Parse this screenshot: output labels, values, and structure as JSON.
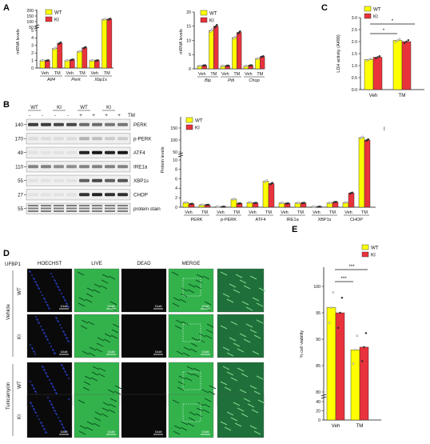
{
  "colors": {
    "wt": "#FFFF00",
    "ki": "#E8333C",
    "bar_stroke": "#222222",
    "micro_green": "#33B24C",
    "micro_blue": "#2C42D4",
    "micro_dark": "#0A0A0A"
  },
  "panels": {
    "A": "A",
    "B": "B",
    "C": "C",
    "D": "D",
    "E": "E"
  },
  "legend": {
    "wt": "WT",
    "ki": "KI"
  },
  "panelA": {
    "ylabel": "mRNA levels",
    "treatments": [
      "Veh",
      "TM"
    ],
    "chart1_genes": [
      "Atf4",
      "Perk",
      "Xbp1s"
    ],
    "chart2_genes": [
      "Bip",
      "Pdi",
      "Chop"
    ],
    "chart1_yticks_low": [
      "0",
      "1",
      "2",
      "3",
      "4",
      "5"
    ],
    "chart1_yticks_high": [
      "50",
      "100",
      "150",
      "200"
    ],
    "chart2_yticks": [
      "0",
      "5",
      "10",
      "15",
      "20"
    ]
  },
  "panelB": {
    "lane_genotypes": [
      "WT",
      "KI",
      "WT",
      "KI"
    ],
    "tm_marks": [
      "-",
      "-",
      "-",
      "-",
      "+",
      "+",
      "+",
      "+"
    ],
    "tm_label": "TM",
    "blots": [
      {
        "mw": "140",
        "name": "PERK"
      },
      {
        "mw": "170",
        "name": "p-PERK"
      },
      {
        "mw": "49",
        "name": "ATF4"
      },
      {
        "mw": "110",
        "name": "IRE1a"
      },
      {
        "mw": "55",
        "name": "XBP1s"
      },
      {
        "mw": "27",
        "name": "CHOP"
      },
      {
        "mw": "55",
        "name": "protein stain"
      }
    ],
    "ylabel": "Protein levels",
    "groups": [
      "PERK",
      "p-PERK",
      "ATF4",
      "IRE1a",
      "XBP1s",
      "CHOP"
    ],
    "yticks_low": [
      "0",
      "2",
      "4",
      "6",
      "8",
      "10"
    ],
    "yticks_high": [
      "50",
      "100",
      "150"
    ],
    "marker": "I"
  },
  "panelC": {
    "ylabel": "LDH activity (A490)",
    "yticks": [
      "0.0",
      "0.5",
      "1.0",
      "1.5",
      "2.0",
      "2.5",
      "3.0"
    ],
    "treatments": [
      "Veh",
      "TM"
    ],
    "sig": [
      "*",
      "*"
    ]
  },
  "panelD": {
    "row_title": "UFBP1",
    "columns": [
      "HOECHST",
      "LIVE",
      "DEAD",
      "MERGE"
    ],
    "conditions": [
      "Vehicle",
      "Tunicamycin"
    ],
    "genotypes": [
      "WT",
      "KI",
      "WT",
      "KI"
    ],
    "scale": "10uM"
  },
  "panelE": {
    "ylabel": "% cell viability",
    "yticks_high": [
      "80",
      "85",
      "90",
      "95",
      "100"
    ],
    "yticks_low": [
      "0",
      "20",
      "40"
    ],
    "treatments": [
      "Veh",
      "TM"
    ],
    "sig": [
      "***",
      "***"
    ]
  },
  "chart_data": [
    {
      "type": "bar",
      "panel": "A-left",
      "ylabel": "mRNA levels",
      "categories": [
        "Atf4 Veh",
        "Atf4 TM",
        "Perk Veh",
        "Perk TM",
        "Xbp1s Veh",
        "Xbp1s TM"
      ],
      "series": [
        {
          "name": "WT",
          "values": [
            1.0,
            2.6,
            1.0,
            2.2,
            1.0,
            120
          ]
        },
        {
          "name": "KI",
          "values": [
            1.0,
            3.3,
            1.1,
            2.7,
            1.0,
            122
          ]
        }
      ],
      "ylim_low": [
        0,
        5
      ],
      "ylim_high": [
        50,
        200
      ]
    },
    {
      "type": "bar",
      "panel": "A-right",
      "ylabel": "mRNA levels",
      "categories": [
        "Bip Veh",
        "Bip TM",
        "Pdi Veh",
        "Pdi TM",
        "Chop Veh",
        "Chop TM"
      ],
      "series": [
        {
          "name": "WT",
          "values": [
            1.0,
            13.5,
            1.0,
            11.0,
            1.0,
            3.6
          ]
        },
        {
          "name": "KI",
          "values": [
            1.2,
            15.0,
            1.1,
            12.8,
            1.2,
            4.3
          ]
        }
      ],
      "ylim": [
        0,
        20
      ]
    },
    {
      "type": "bar",
      "panel": "B-quant",
      "ylabel": "Protein levels",
      "categories": [
        "PERK Veh",
        "PERK TM",
        "p-PERK Veh",
        "p-PERK TM",
        "ATF4 Veh",
        "ATF4 TM",
        "IRE1a Veh",
        "IRE1a TM",
        "XBP1s Veh",
        "XBP1s TM",
        "CHOP Veh",
        "CHOP TM"
      ],
      "series": [
        {
          "name": "WT",
          "values": [
            1.0,
            0.5,
            0.1,
            1.7,
            1.0,
            5.5,
            0.9,
            0.9,
            0.1,
            0.9,
            1.0,
            110
          ]
        },
        {
          "name": "KI",
          "values": [
            0.7,
            0.5,
            0.1,
            0.8,
            0.9,
            5.0,
            0.8,
            0.9,
            0.1,
            1.1,
            3.0,
            100
          ]
        }
      ],
      "ylim_low": [
        0,
        10
      ],
      "ylim_high": [
        50,
        150
      ]
    },
    {
      "type": "bar",
      "panel": "C",
      "ylabel": "LDH activity (A490)",
      "categories": [
        "Veh",
        "TM"
      ],
      "series": [
        {
          "name": "WT",
          "values": [
            1.25,
            2.05
          ]
        },
        {
          "name": "KI",
          "values": [
            1.35,
            2.0
          ]
        }
      ],
      "ylim": [
        0,
        3.0
      ]
    },
    {
      "type": "bar",
      "panel": "E",
      "ylabel": "% cell viability",
      "categories": [
        "Veh",
        "TM"
      ],
      "series": [
        {
          "name": "WT",
          "values": [
            96,
            88
          ]
        },
        {
          "name": "KI",
          "values": [
            95,
            88.5
          ]
        }
      ],
      "ylim_low": [
        0,
        40
      ],
      "ylim_high": [
        80,
        100
      ]
    }
  ]
}
